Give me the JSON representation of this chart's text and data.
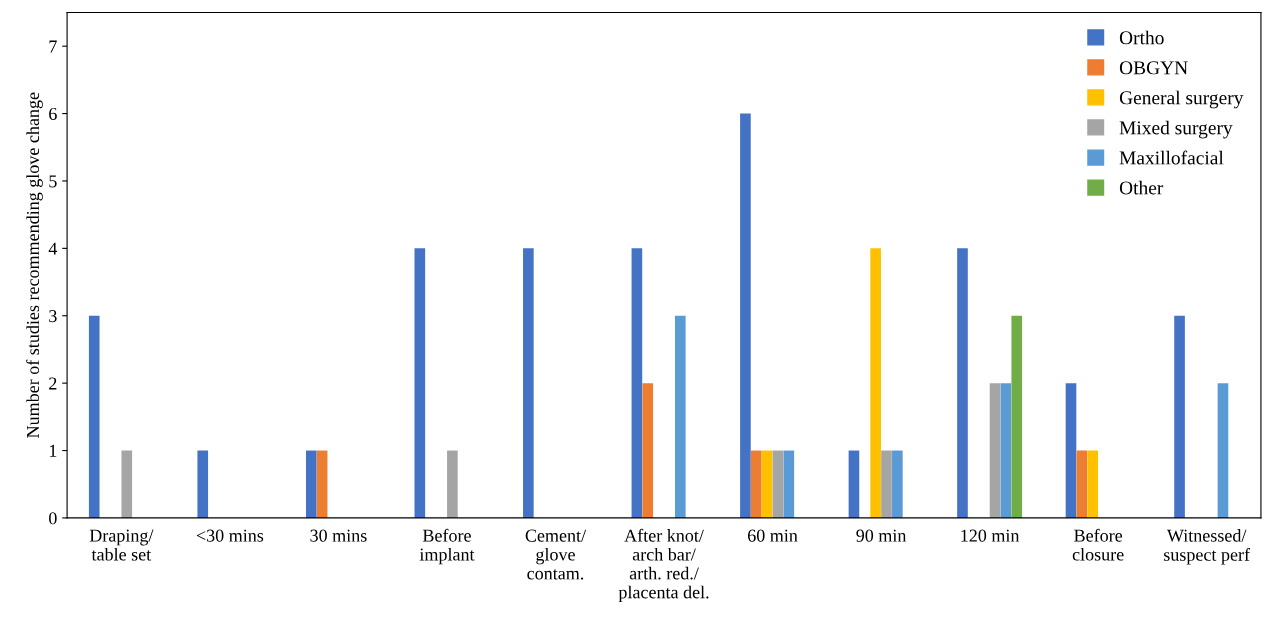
{
  "chart_data": {
    "type": "bar",
    "ylabel": "Number of studies recommending glove change",
    "categories": [
      "Draping/\ntable set",
      "<30 mins",
      "30 mins",
      "Before\nimplant",
      "Cement/\nglove\ncontam.",
      "After knot/\narch bar/\narth. red./\nplacenta del.",
      "60 min",
      "90 min",
      "120 min",
      "Before\nclosure",
      "Witnessed/\nsuspect perf"
    ],
    "series": [
      {
        "name": "Ortho",
        "color": "#4472c4",
        "values": [
          3,
          1,
          1,
          4,
          4,
          4,
          6,
          1,
          4,
          2,
          3
        ]
      },
      {
        "name": "OBGYN",
        "color": "#ed7d31",
        "values": [
          0,
          0,
          1,
          0,
          0,
          2,
          1,
          0,
          0,
          1,
          0
        ]
      },
      {
        "name": "General surgery",
        "color": "#ffc000",
        "values": [
          0,
          0,
          0,
          0,
          0,
          0,
          1,
          4,
          0,
          1,
          0
        ]
      },
      {
        "name": "Mixed surgery",
        "color": "#a5a5a5",
        "values": [
          1,
          0,
          0,
          1,
          0,
          0,
          1,
          1,
          2,
          0,
          0
        ]
      },
      {
        "name": "Maxillofacial",
        "color": "#5b9bd5",
        "values": [
          0,
          0,
          0,
          0,
          0,
          3,
          1,
          1,
          2,
          0,
          2
        ]
      },
      {
        "name": "Other",
        "color": "#70ad47",
        "values": [
          0,
          0,
          0,
          0,
          0,
          0,
          0,
          0,
          3,
          0,
          0
        ]
      }
    ],
    "ylim": [
      0,
      7.5
    ],
    "yticks": [
      0,
      1,
      2,
      3,
      4,
      5,
      6,
      7
    ],
    "grid": false,
    "legend": "top right"
  }
}
